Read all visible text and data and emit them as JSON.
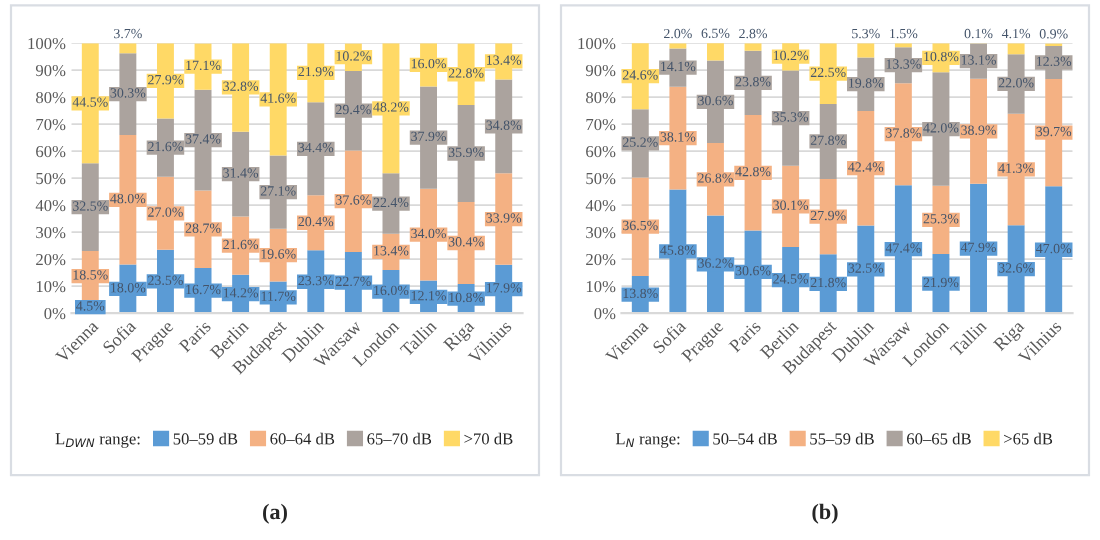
{
  "chart_data": [
    {
      "type": "bar",
      "stacked": true,
      "categories": [
        "Vienna",
        "Sofia",
        "Prague",
        "Paris",
        "Berlin",
        "Budapest",
        "Dublin",
        "Warsaw",
        "London",
        "Tallin",
        "Riga",
        "Vilnius"
      ],
      "legend_title": "L$_{DWN}$ range:",
      "legend": "bottom",
      "grid": "y",
      "ylim": [
        0,
        100
      ],
      "yticks": [
        {
          "value": 0,
          "label": "0%"
        },
        {
          "value": 10,
          "label": "10%"
        },
        {
          "value": 20,
          "label": "20%"
        },
        {
          "value": 30,
          "label": "30%"
        },
        {
          "value": 40,
          "label": "40%"
        },
        {
          "value": 50,
          "label": "50%"
        },
        {
          "value": 60,
          "label": "60%"
        },
        {
          "value": 70,
          "label": "70%"
        },
        {
          "value": 80,
          "label": "80%"
        },
        {
          "value": 90,
          "label": "90%"
        },
        {
          "value": 100,
          "label": "100%"
        }
      ],
      "annotations": [
        "(a)"
      ],
      "series": [
        {
          "name": "50–59 dB",
          "color": "#5b9bd5",
          "values": [
            4.5,
            18.0,
            23.5,
            16.7,
            14.2,
            11.7,
            23.3,
            22.7,
            16.0,
            12.1,
            10.8,
            17.9
          ],
          "value_labels": [
            "4.5%",
            "18.0%",
            "23.5%",
            "16.7%",
            "14.2%",
            "11.7%",
            "23.3%",
            "22.7%",
            "16.0%",
            "12.1%",
            "10.8%",
            "17.9%"
          ]
        },
        {
          "name": "60–64 dB",
          "color": "#f4b183",
          "values": [
            18.5,
            48.0,
            27.0,
            28.7,
            21.6,
            19.6,
            20.4,
            37.6,
            13.4,
            34.0,
            30.4,
            33.9
          ],
          "value_labels": [
            "18.5%",
            "48.0%",
            "27.0%",
            "28.7%",
            "21.6%",
            "19.6%",
            "20.4%",
            "37.6%",
            "13.4%",
            "34.0%",
            "30.4%",
            "33.9%"
          ]
        },
        {
          "name": "65–70 dB",
          "color": "#aba39e",
          "values": [
            32.5,
            30.3,
            21.6,
            37.4,
            31.4,
            27.1,
            34.4,
            29.4,
            22.4,
            37.9,
            35.9,
            34.8
          ],
          "value_labels": [
            "32.5%",
            "30.3%",
            "21.6%",
            "37.4%",
            "31.4%",
            "27.1%",
            "34.4%",
            "29.4%",
            "22.4%",
            "37.9%",
            "35.9%",
            "34.8%"
          ]
        },
        {
          "name": ">70 dB",
          "color": "#ffd966",
          "values": [
            44.5,
            3.7,
            27.9,
            17.1,
            32.8,
            41.6,
            21.9,
            10.2,
            48.2,
            16.0,
            22.8,
            13.4
          ],
          "value_labels": [
            "44.5%",
            "3.7%",
            "27.9%",
            "17.1%",
            "32.8%",
            "41.6%",
            "21.9%",
            "10.2%",
            "48.2%",
            "16.0%",
            "22.8%",
            "13.4%"
          ]
        }
      ]
    },
    {
      "type": "bar",
      "stacked": true,
      "categories": [
        "Vienna",
        "Sofia",
        "Prague",
        "Paris",
        "Berlin",
        "Budapest",
        "Dublin",
        "Warsaw",
        "London",
        "Tallin",
        "Riga",
        "Vilnius"
      ],
      "legend_title": "L$_{N}$ range:",
      "legend": "bottom",
      "grid": "y",
      "ylim": [
        0,
        100
      ],
      "yticks": [
        {
          "value": 0,
          "label": "0%"
        },
        {
          "value": 10,
          "label": "10%"
        },
        {
          "value": 20,
          "label": "20%"
        },
        {
          "value": 30,
          "label": "30%"
        },
        {
          "value": 40,
          "label": "40%"
        },
        {
          "value": 50,
          "label": "50%"
        },
        {
          "value": 60,
          "label": "60%"
        },
        {
          "value": 70,
          "label": "70%"
        },
        {
          "value": 80,
          "label": "80%"
        },
        {
          "value": 90,
          "label": "90%"
        },
        {
          "value": 100,
          "label": "100%"
        }
      ],
      "annotations": [
        "(b)"
      ],
      "series": [
        {
          "name": "50–54 dB",
          "color": "#5b9bd5",
          "values": [
            13.8,
            45.8,
            36.2,
            30.6,
            24.5,
            21.8,
            32.5,
            47.4,
            21.9,
            47.9,
            32.6,
            47.0
          ],
          "value_labels": [
            "13.8%",
            "45.8%",
            "36.2%",
            "30.6%",
            "24.5%",
            "21.8%",
            "32.5%",
            "47.4%",
            "21.9%",
            "47.9%",
            "32.6%",
            "47.0%"
          ]
        },
        {
          "name": "55–59 dB",
          "color": "#f4b183",
          "values": [
            36.5,
            38.1,
            26.8,
            42.8,
            30.1,
            27.9,
            42.4,
            37.8,
            25.3,
            38.9,
            41.3,
            39.7
          ],
          "value_labels": [
            "36.5%",
            "38.1%",
            "26.8%",
            "42.8%",
            "30.1%",
            "27.9%",
            "42.4%",
            "37.8%",
            "25.3%",
            "38.9%",
            "41.3%",
            "39.7%"
          ]
        },
        {
          "name": "60–65 dB",
          "color": "#aba39e",
          "values": [
            25.2,
            14.1,
            30.6,
            23.8,
            35.3,
            27.8,
            19.8,
            13.3,
            42.0,
            13.1,
            22.0,
            12.3
          ],
          "value_labels": [
            "25.2%",
            "14.1%",
            "30.6%",
            "23.8%",
            "35.3%",
            "27.8%",
            "19.8%",
            "13.3%",
            "42.0%",
            "13.1%",
            "22.0%",
            "12.3%"
          ]
        },
        {
          "name": ">65 dB",
          "color": "#ffd966",
          "values": [
            24.6,
            2.0,
            6.5,
            2.8,
            10.2,
            22.5,
            5.3,
            1.5,
            10.8,
            0.1,
            4.1,
            0.9
          ],
          "value_labels": [
            "24.6%",
            "2.0%",
            "6.5%",
            "2.8%",
            "10.2%",
            "22.5%",
            "5.3%",
            "1.5%",
            "10.8%",
            "0.1%",
            "4.1%",
            "0.9%"
          ]
        }
      ]
    }
  ]
}
